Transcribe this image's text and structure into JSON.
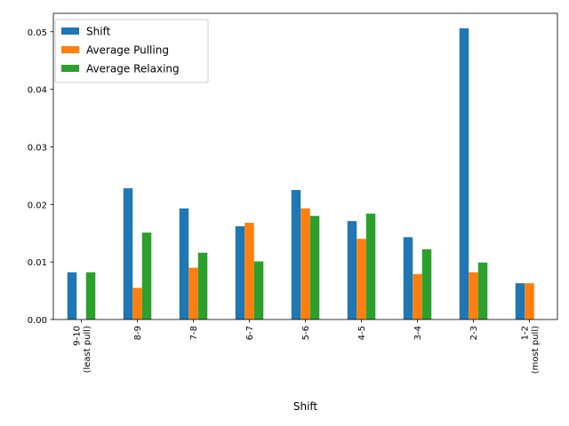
{
  "chart_data": {
    "type": "bar",
    "xlabel": "Shift",
    "ylabel": "",
    "ylim": [
      0,
      0.0532
    ],
    "yticks": [
      0.0,
      0.01,
      0.02,
      0.03,
      0.04,
      0.05
    ],
    "ytick_labels": [
      "0.00",
      "0.01",
      "0.02",
      "0.03",
      "0.04",
      "0.05"
    ],
    "categories": [
      [
        "9-10",
        "(least pull)"
      ],
      [
        "8-9"
      ],
      [
        "7-8"
      ],
      [
        "6-7"
      ],
      [
        "5-6"
      ],
      [
        "4-5"
      ],
      [
        "3-4"
      ],
      [
        "2-3"
      ],
      [
        "1-2",
        "(most pull)"
      ]
    ],
    "series": [
      {
        "name": "Shift",
        "color": "#1f77b4",
        "values": [
          0.0082,
          0.0228,
          0.0193,
          0.0162,
          0.0225,
          0.0171,
          0.0143,
          0.0506,
          0.0063
        ]
      },
      {
        "name": "Average Pulling",
        "color": "#ff7f0e",
        "values": [
          0.0,
          0.0055,
          0.009,
          0.0168,
          0.0193,
          0.014,
          0.0079,
          0.0082,
          0.0063
        ]
      },
      {
        "name": "Average Relaxing",
        "color": "#2ca02c",
        "values": [
          0.0082,
          0.0151,
          0.0116,
          0.0101,
          0.018,
          0.0184,
          0.0122,
          0.0099,
          0.0
        ]
      }
    ],
    "legend": "top-left",
    "grid": false
  }
}
